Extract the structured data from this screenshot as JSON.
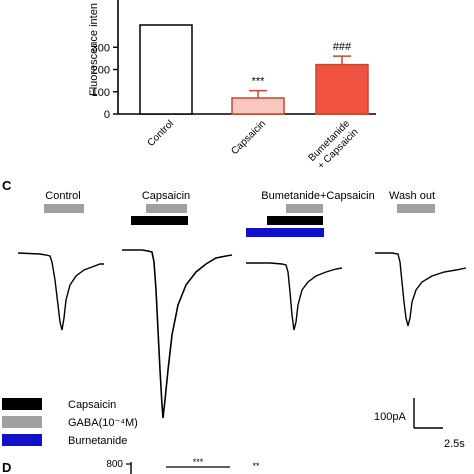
{
  "chart_data": [
    {
      "type": "bar",
      "ylabel": "Fluorescence inten",
      "ylim": [
        0,
        400
      ],
      "yticks": [
        0,
        100,
        200,
        300
      ],
      "categories": [
        "Control",
        "Capsaicin",
        "Bumetanide + Capsaicin"
      ],
      "category_lines": [
        [
          "Control"
        ],
        [
          "Capsaicin"
        ],
        [
          "Bumetanide",
          "+ Capsaicin"
        ]
      ],
      "values": [
        400,
        72,
        222
      ],
      "errors": [
        0,
        33,
        38
      ],
      "annotations": [
        "",
        "***",
        "###"
      ],
      "colors": [
        "#ffffff",
        "#f8c7bf",
        "#ef5240"
      ],
      "grid": false
    },
    {
      "type": "line",
      "panel_label": "C",
      "conditions": [
        "Control",
        "Capsaicin",
        "Bumetanide+Capsaicin",
        "Wash out"
      ],
      "trace_peaks_pA": [
        -200,
        -380,
        -200,
        -220
      ],
      "legend": [
        {
          "label": "Capsaicin",
          "color": "#000000"
        },
        {
          "label": "GABA(10⁻⁴M)",
          "color": "#a0a0a0"
        },
        {
          "label": "Burnetanide",
          "color": "#1010c8"
        }
      ],
      "scale_bar": {
        "y_label": "100pA",
        "x_label": "2.5s"
      }
    },
    {
      "type": "bar",
      "panel_label": "D",
      "yticks": [
        800
      ],
      "annotations": [
        "***",
        "**"
      ]
    }
  ]
}
